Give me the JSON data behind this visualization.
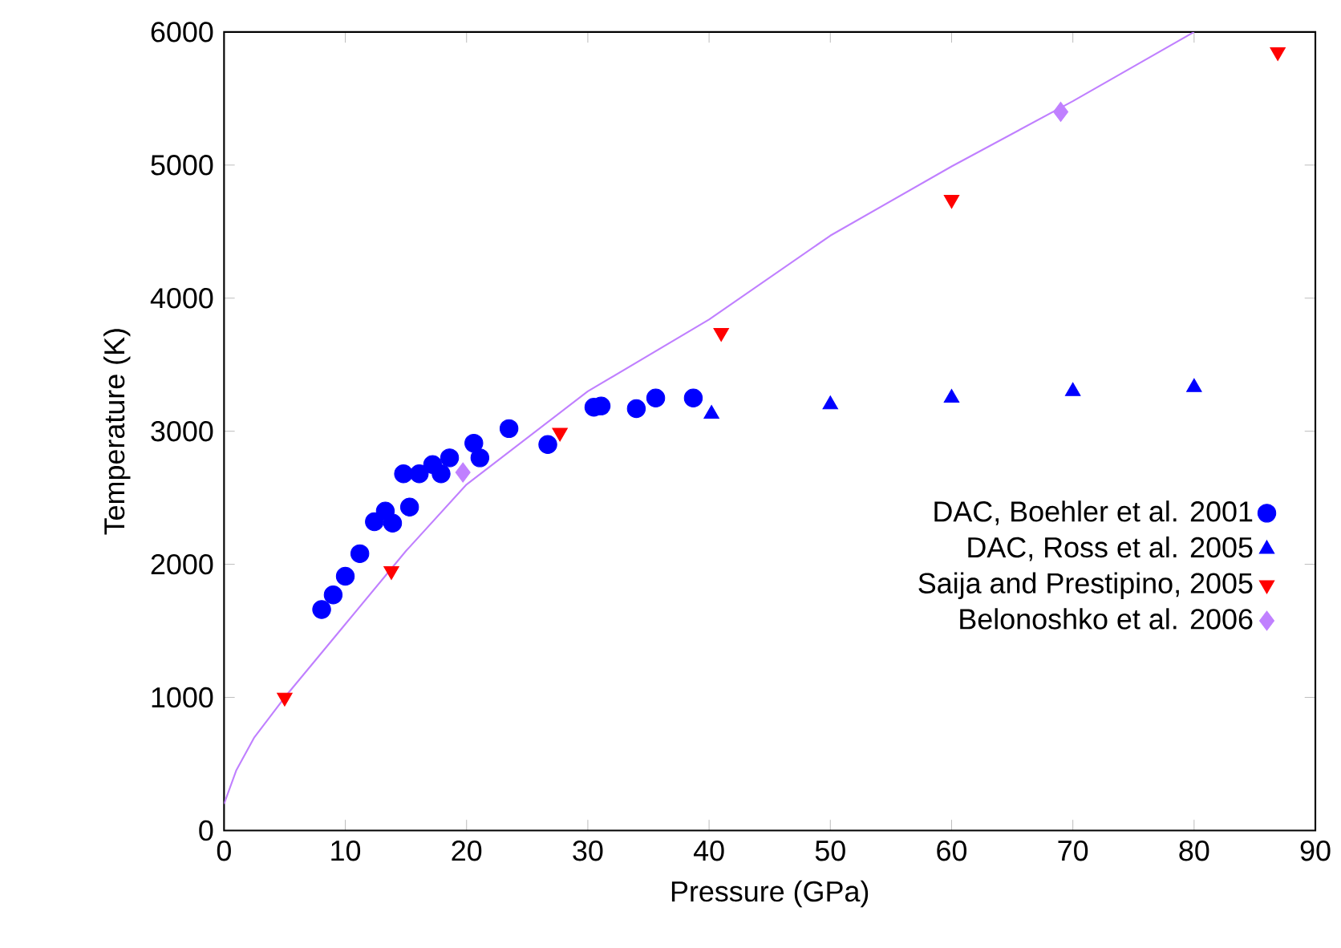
{
  "chart_data": {
    "type": "scatter",
    "xlabel": "Pressure (GPa)",
    "ylabel": "Temperature (K)",
    "xlim": [
      0,
      90
    ],
    "ylim": [
      0,
      6000
    ],
    "xticks": [
      0,
      10,
      20,
      30,
      40,
      50,
      60,
      70,
      80,
      90
    ],
    "yticks": [
      0,
      1000,
      2000,
      3000,
      4000,
      5000,
      6000
    ],
    "grid": false,
    "legend": "right",
    "series": [
      {
        "name": "DAC, Boehler et al. 2001",
        "color": "#0000ff",
        "marker": "circle",
        "x": [
          8.05,
          9.0,
          10.0,
          11.2,
          12.4,
          13.3,
          13.9,
          15.3,
          14.8,
          16.1,
          17.2,
          17.9,
          18.6,
          20.6,
          21.1,
          23.5,
          26.7,
          30.5,
          31.1,
          34.0,
          35.6,
          38.7
        ],
        "values": [
          1660,
          1770,
          1910,
          2080,
          2320,
          2400,
          2310,
          2430,
          2680,
          2680,
          2750,
          2680,
          2800,
          2910,
          2800,
          3020,
          2900,
          3180,
          3190,
          3170,
          3250,
          3250
        ]
      },
      {
        "name": "DAC, Ross et al. 2005",
        "color": "#0000ff",
        "marker": "triangle",
        "x": [
          40.2,
          50,
          60,
          70,
          80
        ],
        "values": [
          3130,
          3200,
          3250,
          3300,
          3330
        ]
      },
      {
        "name": "Saija and Prestipino, 2005",
        "color": "#ff0000",
        "marker": "triangle-down",
        "x": [
          5,
          13.8,
          27.7,
          41,
          60,
          86.9
        ],
        "values": [
          1000,
          1950,
          2990,
          3740,
          4740,
          5850
        ]
      },
      {
        "name": "Belonoshko et al. 2006",
        "color": "#c080ff",
        "marker": "diamond",
        "x": [
          19.7,
          69
        ],
        "values": [
          2690,
          5400
        ]
      },
      {
        "type": "line",
        "color": "#c080ff",
        "marker": "none",
        "line_style": "solid",
        "x": [
          0,
          1,
          2.5,
          5,
          10,
          15,
          20,
          30,
          40,
          50,
          60,
          70,
          80
        ],
        "values": [
          200,
          450,
          700,
          1000,
          1550,
          2100,
          2600,
          3300,
          3840,
          4470,
          4990,
          5480,
          6000
        ]
      }
    ]
  }
}
